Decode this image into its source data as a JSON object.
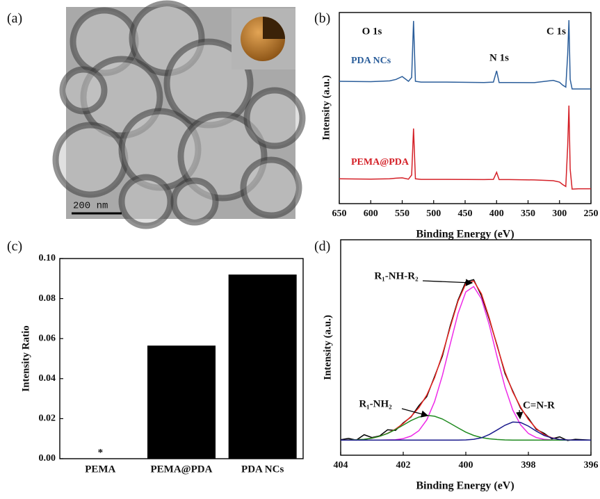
{
  "chart_data": [
    {
      "type": "image",
      "label": "(a)",
      "scale_bar": "200 nm"
    },
    {
      "type": "line",
      "label": "(b)",
      "xlabel": "Binding Energy (eV)",
      "ylabel": "Intensity (a.u.)",
      "x": [
        650,
        600,
        570,
        560,
        550,
        540,
        535,
        532,
        529,
        520,
        480,
        420,
        405,
        400,
        396,
        380,
        340,
        310,
        300,
        295,
        290,
        287,
        285,
        283,
        280,
        270,
        250
      ],
      "xlim": [
        650,
        250
      ],
      "xticks": [
        650,
        600,
        550,
        500,
        450,
        400,
        350,
        300,
        250
      ],
      "ylim": [
        0,
        10
      ],
      "series": [
        {
          "name": "PDA NCs",
          "color": "#2a5d9a",
          "values": [
            6.4,
            6.38,
            6.42,
            6.5,
            6.65,
            6.4,
            6.6,
            9.56,
            6.4,
            6.36,
            6.36,
            6.34,
            6.36,
            6.95,
            6.34,
            6.34,
            6.33,
            6.45,
            6.35,
            6.2,
            6.1,
            7.8,
            9.6,
            6.5,
            6.0,
            6.0,
            6.0
          ]
        },
        {
          "name": "PEMA@PDA",
          "color": "#d42027",
          "values": [
            1.3,
            1.28,
            1.3,
            1.33,
            1.35,
            1.28,
            1.5,
            3.93,
            1.3,
            1.27,
            1.27,
            1.26,
            1.27,
            1.64,
            1.26,
            1.26,
            1.24,
            1.2,
            1.13,
            1.0,
            0.9,
            3.0,
            5.13,
            1.8,
            0.76,
            0.78,
            0.78
          ]
        }
      ],
      "annotations": [
        {
          "text": "O 1s"
        },
        {
          "text": "N 1s"
        },
        {
          "text": "C 1s"
        }
      ]
    },
    {
      "type": "bar",
      "label": "(c)",
      "ylabel": "Intensity Ratio",
      "categories": [
        "PEMA",
        "PEMA@PDA",
        "PDA NCs"
      ],
      "values": [
        0,
        0.0565,
        0.092
      ],
      "color": "#000000",
      "ylim": [
        0,
        0.1
      ],
      "yticks": [
        {
          "value": 0,
          "label": "0.00"
        },
        {
          "value": 0.02,
          "label": "0.02"
        },
        {
          "value": 0.04,
          "label": "0.04"
        },
        {
          "value": 0.06,
          "label": "0.06"
        },
        {
          "value": 0.08,
          "label": "0.08"
        },
        {
          "value": 0.1,
          "label": "0.10"
        }
      ],
      "annotations": [
        {
          "text": "*"
        }
      ]
    },
    {
      "type": "line",
      "label": "(d)",
      "xlabel": "Binding Energy (eV)",
      "ylabel": "Intensity (a.u.)",
      "x": [
        404,
        403.75,
        403.5,
        403.25,
        403,
        402.75,
        402.5,
        402.25,
        402,
        401.75,
        401.5,
        401.25,
        401,
        400.75,
        400.5,
        400.25,
        400,
        399.75,
        399.5,
        399.25,
        399,
        398.75,
        398.5,
        398.25,
        398,
        397.75,
        397.5,
        397.25,
        397,
        396.75,
        396.5,
        396.25,
        396
      ],
      "xlim": [
        404,
        396
      ],
      "xticks": [
        404,
        402,
        400,
        398,
        396
      ],
      "ylim": [
        0,
        10
      ],
      "series": [
        {
          "color": "#000000",
          "values": [
            0.72,
            0.78,
            0.7,
            0.95,
            0.82,
            0.9,
            1.18,
            1.15,
            1.5,
            1.78,
            2.3,
            2.72,
            3.65,
            4.6,
            6.0,
            7.2,
            8.05,
            8.15,
            7.4,
            6.3,
            5.1,
            3.8,
            2.98,
            2.18,
            1.72,
            1.2,
            1.02,
            0.76,
            0.85,
            0.68,
            0.74,
            0.72,
            0.7
          ]
        },
        {
          "color": "#e8231f",
          "values": [
            0.7,
            0.71,
            0.72,
            0.74,
            0.79,
            0.88,
            1.02,
            1.21,
            1.47,
            1.8,
            2.21,
            2.79,
            3.59,
            4.68,
            5.93,
            7.15,
            7.96,
            8.09,
            7.49,
            6.36,
            5.06,
            3.87,
            2.94,
            2.23,
            1.66,
            1.24,
            0.96,
            0.81,
            0.73,
            0.71,
            0.7,
            0.7,
            0.7
          ]
        },
        {
          "name": "R₁-NH-R₂",
          "color": "#ee2ae8",
          "values": [
            0.7,
            0.7,
            0.7,
            0.7,
            0.7,
            0.7,
            0.71,
            0.72,
            0.77,
            0.89,
            1.14,
            1.64,
            2.48,
            3.7,
            5.15,
            6.58,
            7.58,
            7.83,
            7.26,
            6.04,
            4.56,
            3.17,
            2.1,
            1.41,
            1.01,
            0.82,
            0.74,
            0.71,
            0.7,
            0.7,
            0.7,
            0.7,
            0.7
          ]
        },
        {
          "name": "R₁-NH₂",
          "color": "#1f8a1f",
          "values": [
            0.7,
            0.71,
            0.72,
            0.74,
            0.79,
            0.88,
            1.01,
            1.19,
            1.4,
            1.61,
            1.77,
            1.85,
            1.81,
            1.68,
            1.48,
            1.27,
            1.07,
            0.92,
            0.82,
            0.76,
            0.73,
            0.71,
            0.7,
            0.7,
            0.7,
            0.7,
            0.7,
            0.7,
            0.7,
            0.7,
            0.7,
            0.7,
            0.7
          ]
        },
        {
          "name": "C=N-R",
          "color": "#1a1a8c",
          "values": [
            0.7,
            0.7,
            0.7,
            0.7,
            0.7,
            0.7,
            0.7,
            0.7,
            0.7,
            0.7,
            0.7,
            0.7,
            0.7,
            0.7,
            0.7,
            0.7,
            0.71,
            0.74,
            0.81,
            0.96,
            1.17,
            1.39,
            1.54,
            1.52,
            1.35,
            1.12,
            0.92,
            0.8,
            0.73,
            0.71,
            0.7,
            0.7,
            0.7
          ]
        }
      ]
    }
  ]
}
